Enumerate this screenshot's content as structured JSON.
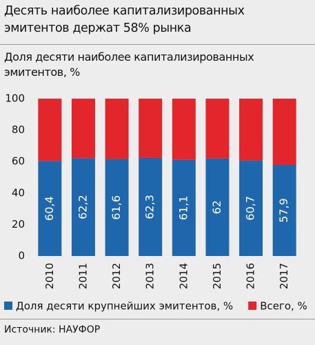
{
  "chart_data": {
    "type": "stacked_bar",
    "title": "Десять наиболее  капитализированных эмитентов держат 58% рынка",
    "subtitle": "Доля десяти наиболее капитализированных эмитентов, %",
    "categories": [
      "2010",
      "2011",
      "2012",
      "2013",
      "2014",
      "2015",
      "2016",
      "2017"
    ],
    "series": [
      {
        "name": "Доля десяти крупнейших эмитентов, %",
        "color": "#1f67ad",
        "values": [
          60.4,
          62.2,
          61.6,
          62.3,
          61.1,
          62,
          60.7,
          57.9
        ],
        "value_labels": [
          "60,4",
          "62,2",
          "61,6",
          "62,3",
          "61,1",
          "62",
          "60,7",
          "57,9"
        ]
      },
      {
        "name": "Всего, %",
        "color": "#e2262c",
        "values": [
          39.6,
          37.8,
          38.4,
          37.7,
          38.9,
          38,
          39.3,
          42.1
        ]
      }
    ],
    "ylim": [
      0,
      100
    ],
    "yticks": [
      0,
      20,
      40,
      60,
      80,
      100
    ],
    "source": "Источник: НАУФОР"
  }
}
